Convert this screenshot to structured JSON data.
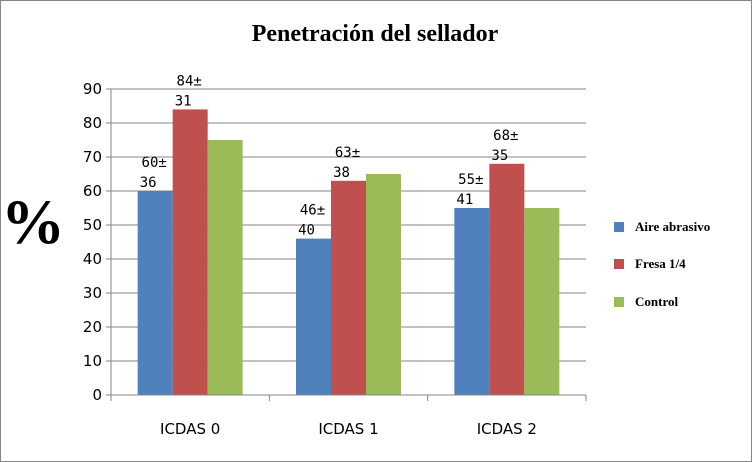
{
  "chart_data": {
    "type": "bar",
    "title": "Penetración del sellador",
    "ylabel": "%",
    "xlabel": "",
    "categories": [
      "ICDAS 0",
      "ICDAS 1",
      "ICDAS 2"
    ],
    "ylim": [
      0,
      90
    ],
    "yticks": [
      0,
      10,
      20,
      30,
      40,
      50,
      60,
      70,
      80,
      90
    ],
    "grid": true,
    "legend_position": "right",
    "series": [
      {
        "name": "Aire abrasivo",
        "color": "#4f81bd",
        "values": [
          60,
          46,
          55
        ],
        "labels": [
          [
            "60±",
            "36"
          ],
          [
            "46±",
            "40"
          ],
          [
            "55±",
            "41"
          ]
        ]
      },
      {
        "name": "Fresa 1/4",
        "color": "#c0504d",
        "values": [
          84,
          63,
          68
        ],
        "labels": [
          [
            "84±",
            "31"
          ],
          [
            "63±",
            "38"
          ],
          [
            "68±",
            "35"
          ]
        ]
      },
      {
        "name": "Control",
        "color": "#9bbb59",
        "values": [
          75,
          65,
          55
        ],
        "labels": [
          [],
          [],
          []
        ]
      }
    ]
  }
}
